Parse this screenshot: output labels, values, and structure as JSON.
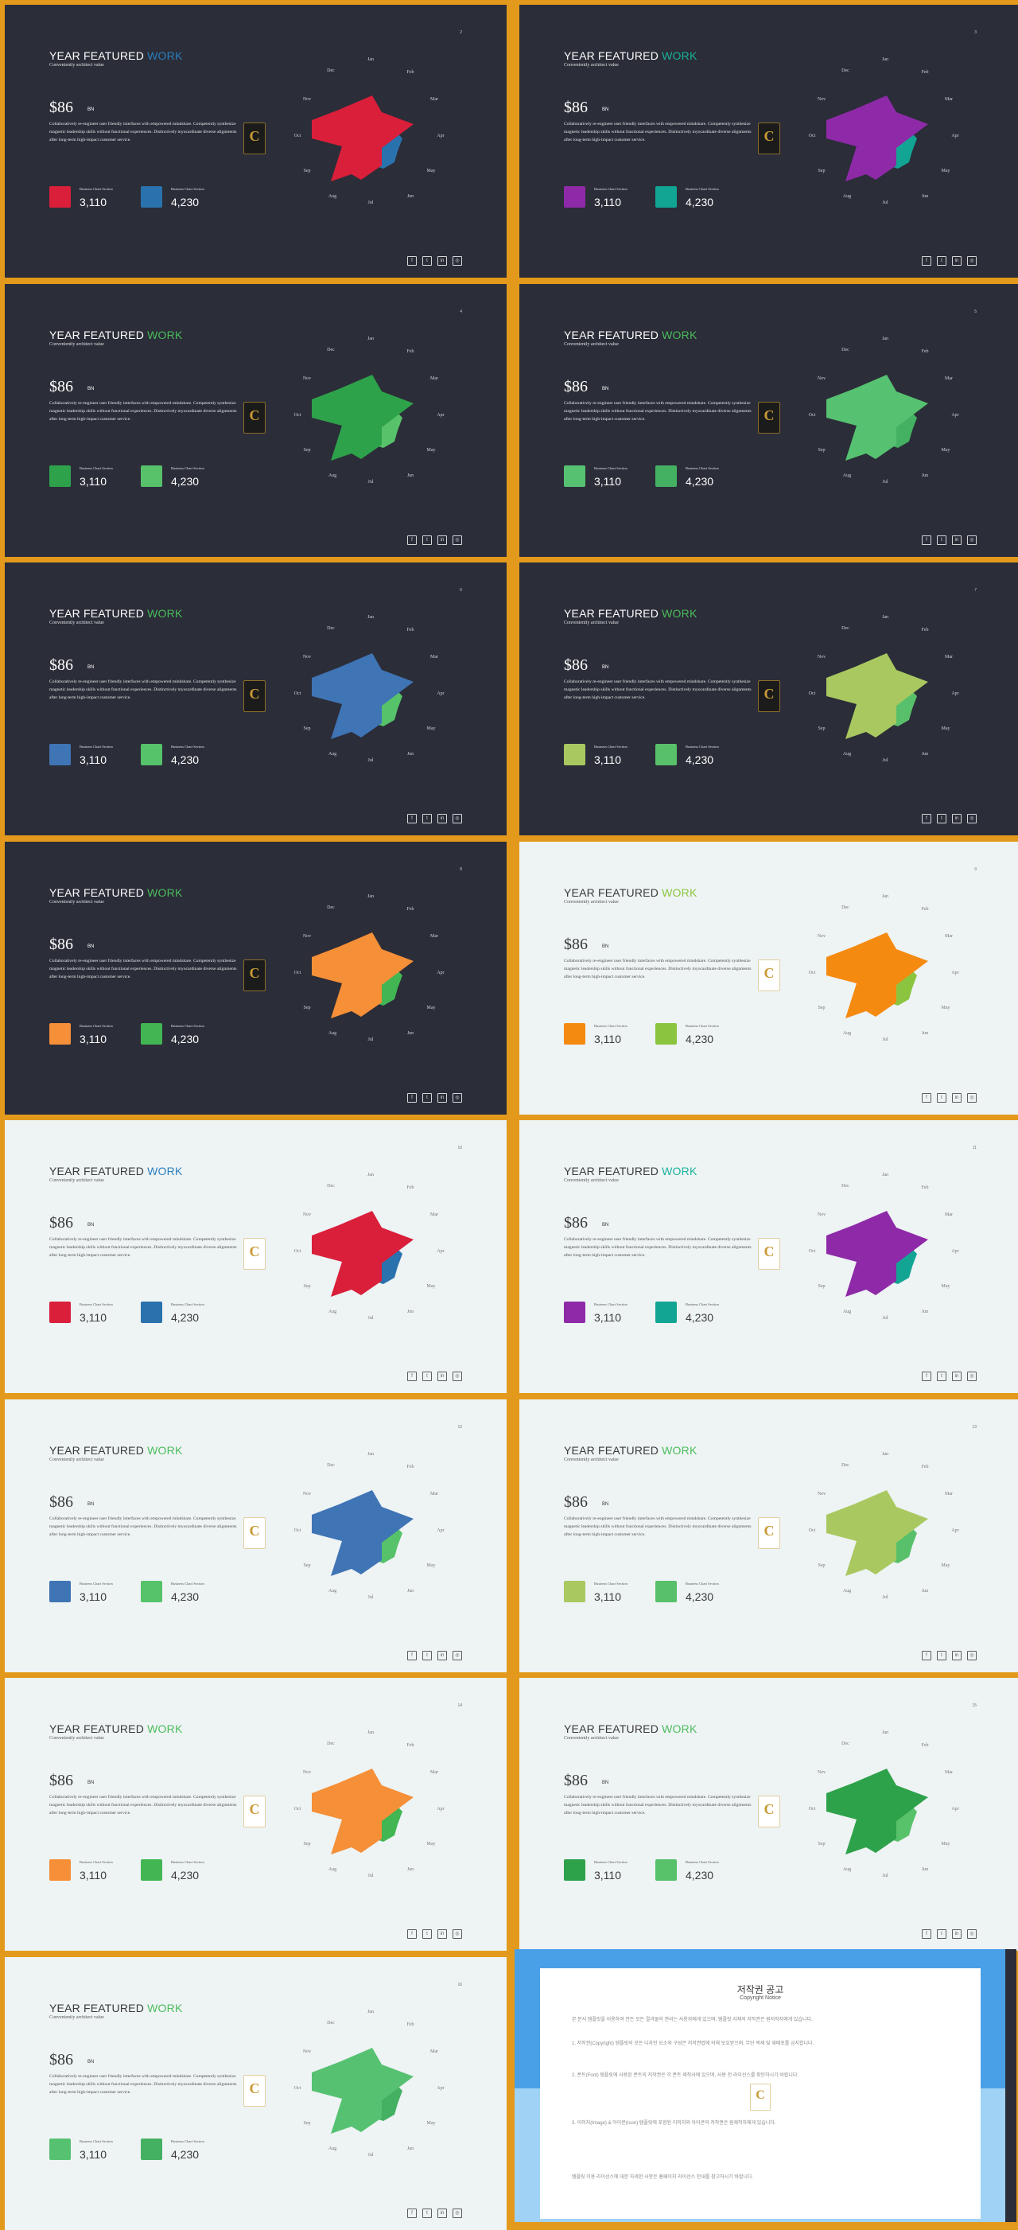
{
  "slide_text": {
    "title_main": "YEAR FEATURED ",
    "title_accent": "WORK",
    "subtitle": "Conveniently architect value",
    "price": "$86",
    "price_unit": "BN",
    "body": "Collaboratively re-engineer user friendly interfaces with empowered mindshare. Competently synthesize magnetic leadership skills without functional experiences. Distinctively myocardinate diverse alignments after long-term high-impact customer service.",
    "legend_label": "Business Chart Section",
    "value_1": "3,110",
    "value_2": "4,230",
    "logo_letter": "C"
  },
  "months": [
    "Jan",
    "Feb",
    "Mar",
    "Apr",
    "May",
    "Jun",
    "Jul",
    "Aug",
    "Sep",
    "Oct",
    "Nov",
    "Dec"
  ],
  "footer_icons": [
    "facebook-icon",
    "twitter-icon",
    "linkedin-icon",
    "instagram-icon"
  ],
  "slides": [
    {
      "page": "2",
      "theme": "dark",
      "accent": "#2a7fbf",
      "primary": "#d91f3a",
      "secondary": "#2a72ad"
    },
    {
      "page": "3",
      "theme": "dark",
      "accent": "#19b39b",
      "primary": "#8e2aa8",
      "secondary": "#12a594"
    },
    {
      "page": "4",
      "theme": "dark",
      "accent": "#4bbd5c",
      "primary": "#2ea24a",
      "secondary": "#57c26a"
    },
    {
      "page": "5",
      "theme": "dark",
      "accent": "#4bbd5c",
      "primary": "#56c271",
      "secondary": "#44b162"
    },
    {
      "page": "6",
      "theme": "dark",
      "accent": "#4bbd5c",
      "primary": "#3f74b5",
      "secondary": "#56c26a"
    },
    {
      "page": "7",
      "theme": "dark",
      "accent": "#4bbd5c",
      "primary": "#a9c860",
      "secondary": "#58c06a"
    },
    {
      "page": "8",
      "theme": "dark",
      "accent": "#4bbd5c",
      "primary": "#f58f38",
      "secondary": "#41b653"
    },
    {
      "page": "9",
      "theme": "light",
      "accent": "#8bc53f",
      "primary": "#f58a10",
      "secondary": "#8bc53f"
    },
    {
      "page": "10",
      "theme": "light",
      "accent": "#2a7fbf",
      "primary": "#d91f3a",
      "secondary": "#2a72ad"
    },
    {
      "page": "11",
      "theme": "light",
      "accent": "#19b39b",
      "primary": "#8e2aa8",
      "secondary": "#12a594"
    },
    {
      "page": "12",
      "theme": "light",
      "accent": "#4bbd5c",
      "primary": "#3f74b5",
      "secondary": "#56c26a"
    },
    {
      "page": "13",
      "theme": "light",
      "accent": "#4bbd5c",
      "primary": "#a9c860",
      "secondary": "#58c06a"
    },
    {
      "page": "14",
      "theme": "light",
      "accent": "#4bbd5c",
      "primary": "#f58f38",
      "secondary": "#41b653"
    },
    {
      "page": "15",
      "theme": "light",
      "accent": "#4bbd5c",
      "primary": "#2ea24a",
      "secondary": "#57c26a"
    },
    {
      "page": "16",
      "theme": "light",
      "accent": "#4bbd5c",
      "primary": "#56c271",
      "secondary": "#44b162"
    }
  ],
  "copyright": {
    "title": "저작권 공고",
    "subtitle": "Copyright Notice",
    "intro": "본 문서 템플릿을 이용하여 만든 모든 결과물의 권리는 사용자에게 있으며, 템플릿 자체의 저작권은 원저작자에게 있습니다.",
    "p1": "1. 저작권(Copyright) 템플릿의 모든 디자인 요소와 구성은 저작권법에 의해 보호받으며, 무단 복제 및 재배포를 금지합니다.",
    "p2": "2. 폰트(Font) 템플릿에 사용된 폰트의 저작권은 각 폰트 제작사에 있으며, 사용 전 라이선스를 확인하시기 바랍니다.",
    "p3": "3. 이미지(Image) & 아이콘(Icon) 템플릿에 포함된 이미지와 아이콘의 저작권은 원제작자에게 있습니다.",
    "outro": "템플릿 이용 라이선스에 대한 자세한 사항은 홈페이지 라이선스 안내를 참고하시기 바랍니다."
  }
}
